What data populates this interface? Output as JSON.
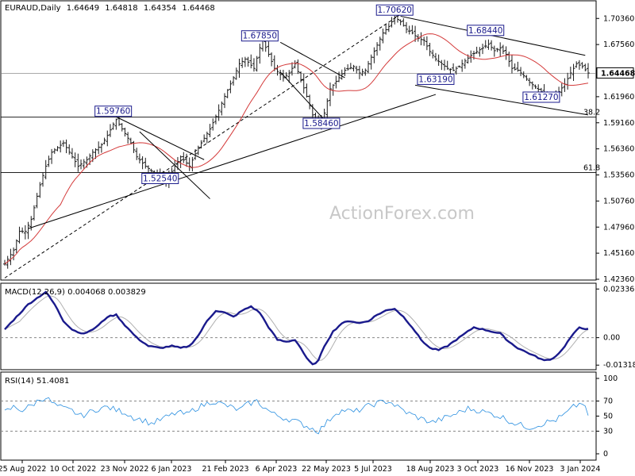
{
  "chart_data": {
    "type": "ohlc",
    "symbol": "EURAUD,Daily",
    "ohlc": [
      "1.64649",
      "1.64818",
      "1.64354",
      "1.64468"
    ],
    "last_price": "1.64468",
    "watermark": "ActionForex.com",
    "x_ticks": [
      "25 Aug 2022",
      "10 Oct 2022",
      "23 Nov 2022",
      "6 Jan 2023",
      "21 Feb 2023",
      "6 Apr 2023",
      "22 May 2023",
      "5 Jul 2023",
      "18 Aug 2023",
      "3 Oct 2023",
      "16 Nov 2023",
      "3 Jan 2024"
    ],
    "price_axis": {
      "ylim": [
        1.4236,
        1.72
      ],
      "ticks": [
        "1.70360",
        "1.67560",
        "1.64760",
        "1.61960",
        "1.59160",
        "1.56360",
        "1.53560",
        "1.50760",
        "1.47960",
        "1.45160",
        "1.42360"
      ]
    },
    "price_close_anchors": [
      [
        0,
        1.44
      ],
      [
        3,
        1.455
      ],
      [
        5,
        1.475
      ],
      [
        7,
        1.475
      ],
      [
        9,
        1.488
      ],
      [
        12,
        1.525
      ],
      [
        14,
        1.545
      ],
      [
        16,
        1.56
      ],
      [
        18,
        1.565
      ],
      [
        20,
        1.57
      ],
      [
        23,
        1.555
      ],
      [
        25,
        1.545
      ],
      [
        28,
        1.552
      ],
      [
        30,
        1.56
      ],
      [
        33,
        1.568
      ],
      [
        35,
        1.578
      ],
      [
        37,
        1.59
      ],
      [
        38,
        1.595
      ],
      [
        40,
        1.585
      ],
      [
        43,
        1.57
      ],
      [
        45,
        1.555
      ],
      [
        48,
        1.545
      ],
      [
        50,
        1.54
      ],
      [
        53,
        1.535
      ],
      [
        55,
        1.528
      ],
      [
        58,
        1.545
      ],
      [
        60,
        1.555
      ],
      [
        63,
        1.545
      ],
      [
        66,
        1.565
      ],
      [
        70,
        1.585
      ],
      [
        73,
        1.605
      ],
      [
        75,
        1.62
      ],
      [
        78,
        1.64
      ],
      [
        80,
        1.655
      ],
      [
        82,
        1.66
      ],
      [
        85,
        1.65
      ],
      [
        87,
        1.672
      ],
      [
        88,
        1.68
      ],
      [
        90,
        1.665
      ],
      [
        92,
        1.65
      ],
      [
        95,
        1.64
      ],
      [
        97,
        1.645
      ],
      [
        99,
        1.655
      ],
      [
        101,
        1.638
      ],
      [
        103,
        1.62
      ],
      [
        105,
        1.6
      ],
      [
        107,
        1.59
      ],
      [
        109,
        1.602
      ],
      [
        111,
        1.628
      ],
      [
        114,
        1.64
      ],
      [
        116,
        1.648
      ],
      [
        119,
        1.652
      ],
      [
        121,
        1.645
      ],
      [
        123,
        1.648
      ],
      [
        125,
        1.662
      ],
      [
        127,
        1.675
      ],
      [
        129,
        1.688
      ],
      [
        131,
        1.695
      ],
      [
        133,
        1.705
      ],
      [
        135,
        1.7
      ],
      [
        137,
        1.692
      ],
      [
        139,
        1.688
      ],
      [
        141,
        1.682
      ],
      [
        143,
        1.68
      ],
      [
        145,
        1.668
      ],
      [
        147,
        1.66
      ],
      [
        149,
        1.655
      ],
      [
        151,
        1.65
      ],
      [
        153,
        1.648
      ],
      [
        155,
        1.652
      ],
      [
        157,
        1.658
      ],
      [
        159,
        1.664
      ],
      [
        161,
        1.668
      ],
      [
        163,
        1.672
      ],
      [
        165,
        1.676
      ],
      [
        167,
        1.669
      ],
      [
        169,
        1.672
      ],
      [
        171,
        1.665
      ],
      [
        173,
        1.65
      ],
      [
        175,
        1.648
      ],
      [
        177,
        1.642
      ],
      [
        179,
        1.635
      ],
      [
        181,
        1.63
      ],
      [
        183,
        1.625
      ],
      [
        185,
        1.616
      ],
      [
        187,
        1.618
      ],
      [
        189,
        1.625
      ],
      [
        191,
        1.633
      ],
      [
        193,
        1.645
      ],
      [
        195,
        1.655
      ],
      [
        197,
        1.652
      ],
      [
        199,
        1.645
      ]
    ],
    "moving_average": {
      "name": ""
    },
    "trendlines": [
      {
        "from": [
          0,
          1.425
        ],
        "to": [
          135,
          1.708
        ],
        "style": "dashed"
      },
      {
        "from": [
          8,
          1.478
        ],
        "to": [
          147,
          1.622
        ],
        "style": "solid"
      },
      {
        "from": [
          38,
          1.598
        ],
        "to": [
          68,
          1.552
        ],
        "style": "solid"
      },
      {
        "from": [
          46,
          1.582
        ],
        "to": [
          70,
          1.51
        ],
        "style": "solid"
      },
      {
        "from": [
          94,
          1.678
        ],
        "to": [
          116,
          1.64
        ],
        "style": "solid"
      },
      {
        "from": [
          94,
          1.646
        ],
        "to": [
          111,
          1.588
        ],
        "style": "solid"
      },
      {
        "from": [
          135,
          1.706
        ],
        "to": [
          198,
          1.664
        ],
        "style": "solid"
      },
      {
        "from": [
          140,
          1.632
        ],
        "to": [
          199,
          1.6
        ],
        "style": "solid"
      }
    ],
    "levels": [
      {
        "label": "38.2",
        "value": 1.5976
      },
      {
        "label": "61.8",
        "value": 1.5382
      }
    ],
    "annotations": [
      {
        "text": "1.70620",
        "x": 133,
        "y": 1.7062
      },
      {
        "text": "1.67850",
        "x": 87,
        "y": 1.6785
      },
      {
        "text": "1.68440",
        "x": 164,
        "y": 1.6844
      },
      {
        "text": "1.63190",
        "x": 147,
        "y": 1.6319
      },
      {
        "text": "1.61270",
        "x": 183,
        "y": 1.6127
      },
      {
        "text": "1.59760",
        "x": 37,
        "y": 1.5976
      },
      {
        "text": "1.58460",
        "x": 108,
        "y": 1.5846
      },
      {
        "text": "1.52540",
        "x": 53,
        "y": 1.5254
      }
    ],
    "macd": {
      "label": "MACD(12,26,9) 0.004068 0.003829",
      "ylim": [
        -0.015,
        0.025
      ],
      "ticks": [
        "0.023366",
        "0.00",
        "-0.013186"
      ],
      "zero": 0.0,
      "anchors": [
        [
          0,
          0.004
        ],
        [
          4,
          0.01
        ],
        [
          8,
          0.016
        ],
        [
          12,
          0.02
        ],
        [
          14,
          0.022
        ],
        [
          17,
          0.016
        ],
        [
          20,
          0.008
        ],
        [
          23,
          0.004
        ],
        [
          26,
          0.002
        ],
        [
          29,
          0.003
        ],
        [
          32,
          0.006
        ],
        [
          35,
          0.01
        ],
        [
          38,
          0.011
        ],
        [
          41,
          0.006
        ],
        [
          45,
          0.0
        ],
        [
          49,
          -0.004
        ],
        [
          53,
          -0.005
        ],
        [
          57,
          -0.004
        ],
        [
          60,
          -0.005
        ],
        [
          63,
          -0.004
        ],
        [
          66,
          0.001
        ],
        [
          69,
          0.008
        ],
        [
          72,
          0.013
        ],
        [
          75,
          0.012
        ],
        [
          78,
          0.01
        ],
        [
          81,
          0.013
        ],
        [
          84,
          0.015
        ],
        [
          87,
          0.012
        ],
        [
          90,
          0.005
        ],
        [
          93,
          -0.001
        ],
        [
          96,
          -0.002
        ],
        [
          99,
          -0.001
        ],
        [
          101,
          -0.005
        ],
        [
          103,
          -0.01
        ],
        [
          105,
          -0.013
        ],
        [
          107,
          -0.011
        ],
        [
          109,
          -0.004
        ],
        [
          112,
          0.003
        ],
        [
          115,
          0.007
        ],
        [
          118,
          0.008
        ],
        [
          121,
          0.007
        ],
        [
          124,
          0.008
        ],
        [
          127,
          0.011
        ],
        [
          130,
          0.013
        ],
        [
          133,
          0.014
        ],
        [
          136,
          0.01
        ],
        [
          139,
          0.005
        ],
        [
          142,
          -0.001
        ],
        [
          145,
          -0.005
        ],
        [
          148,
          -0.006
        ],
        [
          151,
          -0.004
        ],
        [
          154,
          -0.001
        ],
        [
          157,
          0.002
        ],
        [
          160,
          0.005
        ],
        [
          163,
          0.004
        ],
        [
          166,
          0.003
        ],
        [
          169,
          0.002
        ],
        [
          172,
          -0.002
        ],
        [
          175,
          -0.005
        ],
        [
          178,
          -0.007
        ],
        [
          181,
          -0.009
        ],
        [
          184,
          -0.011
        ],
        [
          187,
          -0.01
        ],
        [
          190,
          -0.006
        ],
        [
          193,
          0.0
        ],
        [
          196,
          0.005
        ],
        [
          199,
          0.004
        ]
      ]
    },
    "rsi": {
      "label": "RSI(14) 51.4081",
      "ylim": [
        0,
        100
      ],
      "ticks": [
        "100",
        "70",
        "50",
        "30",
        "0"
      ],
      "levels": [
        70,
        30
      ],
      "anchors": [
        [
          0,
          55
        ],
        [
          3,
          62
        ],
        [
          6,
          58
        ],
        [
          9,
          64
        ],
        [
          12,
          72
        ],
        [
          14,
          75
        ],
        [
          17,
          65
        ],
        [
          20,
          60
        ],
        [
          23,
          57
        ],
        [
          26,
          50
        ],
        [
          29,
          55
        ],
        [
          32,
          60
        ],
        [
          35,
          62
        ],
        [
          38,
          58
        ],
        [
          41,
          55
        ],
        [
          44,
          48
        ],
        [
          47,
          45
        ],
        [
          50,
          40
        ],
        [
          53,
          45
        ],
        [
          56,
          50
        ],
        [
          59,
          55
        ],
        [
          62,
          52
        ],
        [
          65,
          60
        ],
        [
          68,
          65
        ],
        [
          71,
          70
        ],
        [
          74,
          66
        ],
        [
          77,
          62
        ],
        [
          80,
          58
        ],
        [
          83,
          66
        ],
        [
          86,
          70
        ],
        [
          89,
          60
        ],
        [
          92,
          52
        ],
        [
          95,
          48
        ],
        [
          98,
          45
        ],
        [
          101,
          40
        ],
        [
          104,
          35
        ],
        [
          107,
          30
        ],
        [
          110,
          42
        ],
        [
          113,
          55
        ],
        [
          116,
          58
        ],
        [
          119,
          55
        ],
        [
          122,
          60
        ],
        [
          125,
          65
        ],
        [
          128,
          68
        ],
        [
          131,
          70
        ],
        [
          134,
          62
        ],
        [
          137,
          55
        ],
        [
          140,
          50
        ],
        [
          143,
          45
        ],
        [
          146,
          42
        ],
        [
          149,
          46
        ],
        [
          152,
          50
        ],
        [
          155,
          55
        ],
        [
          158,
          60
        ],
        [
          161,
          58
        ],
        [
          164,
          55
        ],
        [
          167,
          52
        ],
        [
          170,
          48
        ],
        [
          173,
          42
        ],
        [
          176,
          38
        ],
        [
          179,
          35
        ],
        [
          182,
          38
        ],
        [
          185,
          42
        ],
        [
          188,
          45
        ],
        [
          191,
          52
        ],
        [
          194,
          62
        ],
        [
          197,
          68
        ],
        [
          199,
          51
        ]
      ]
    }
  }
}
